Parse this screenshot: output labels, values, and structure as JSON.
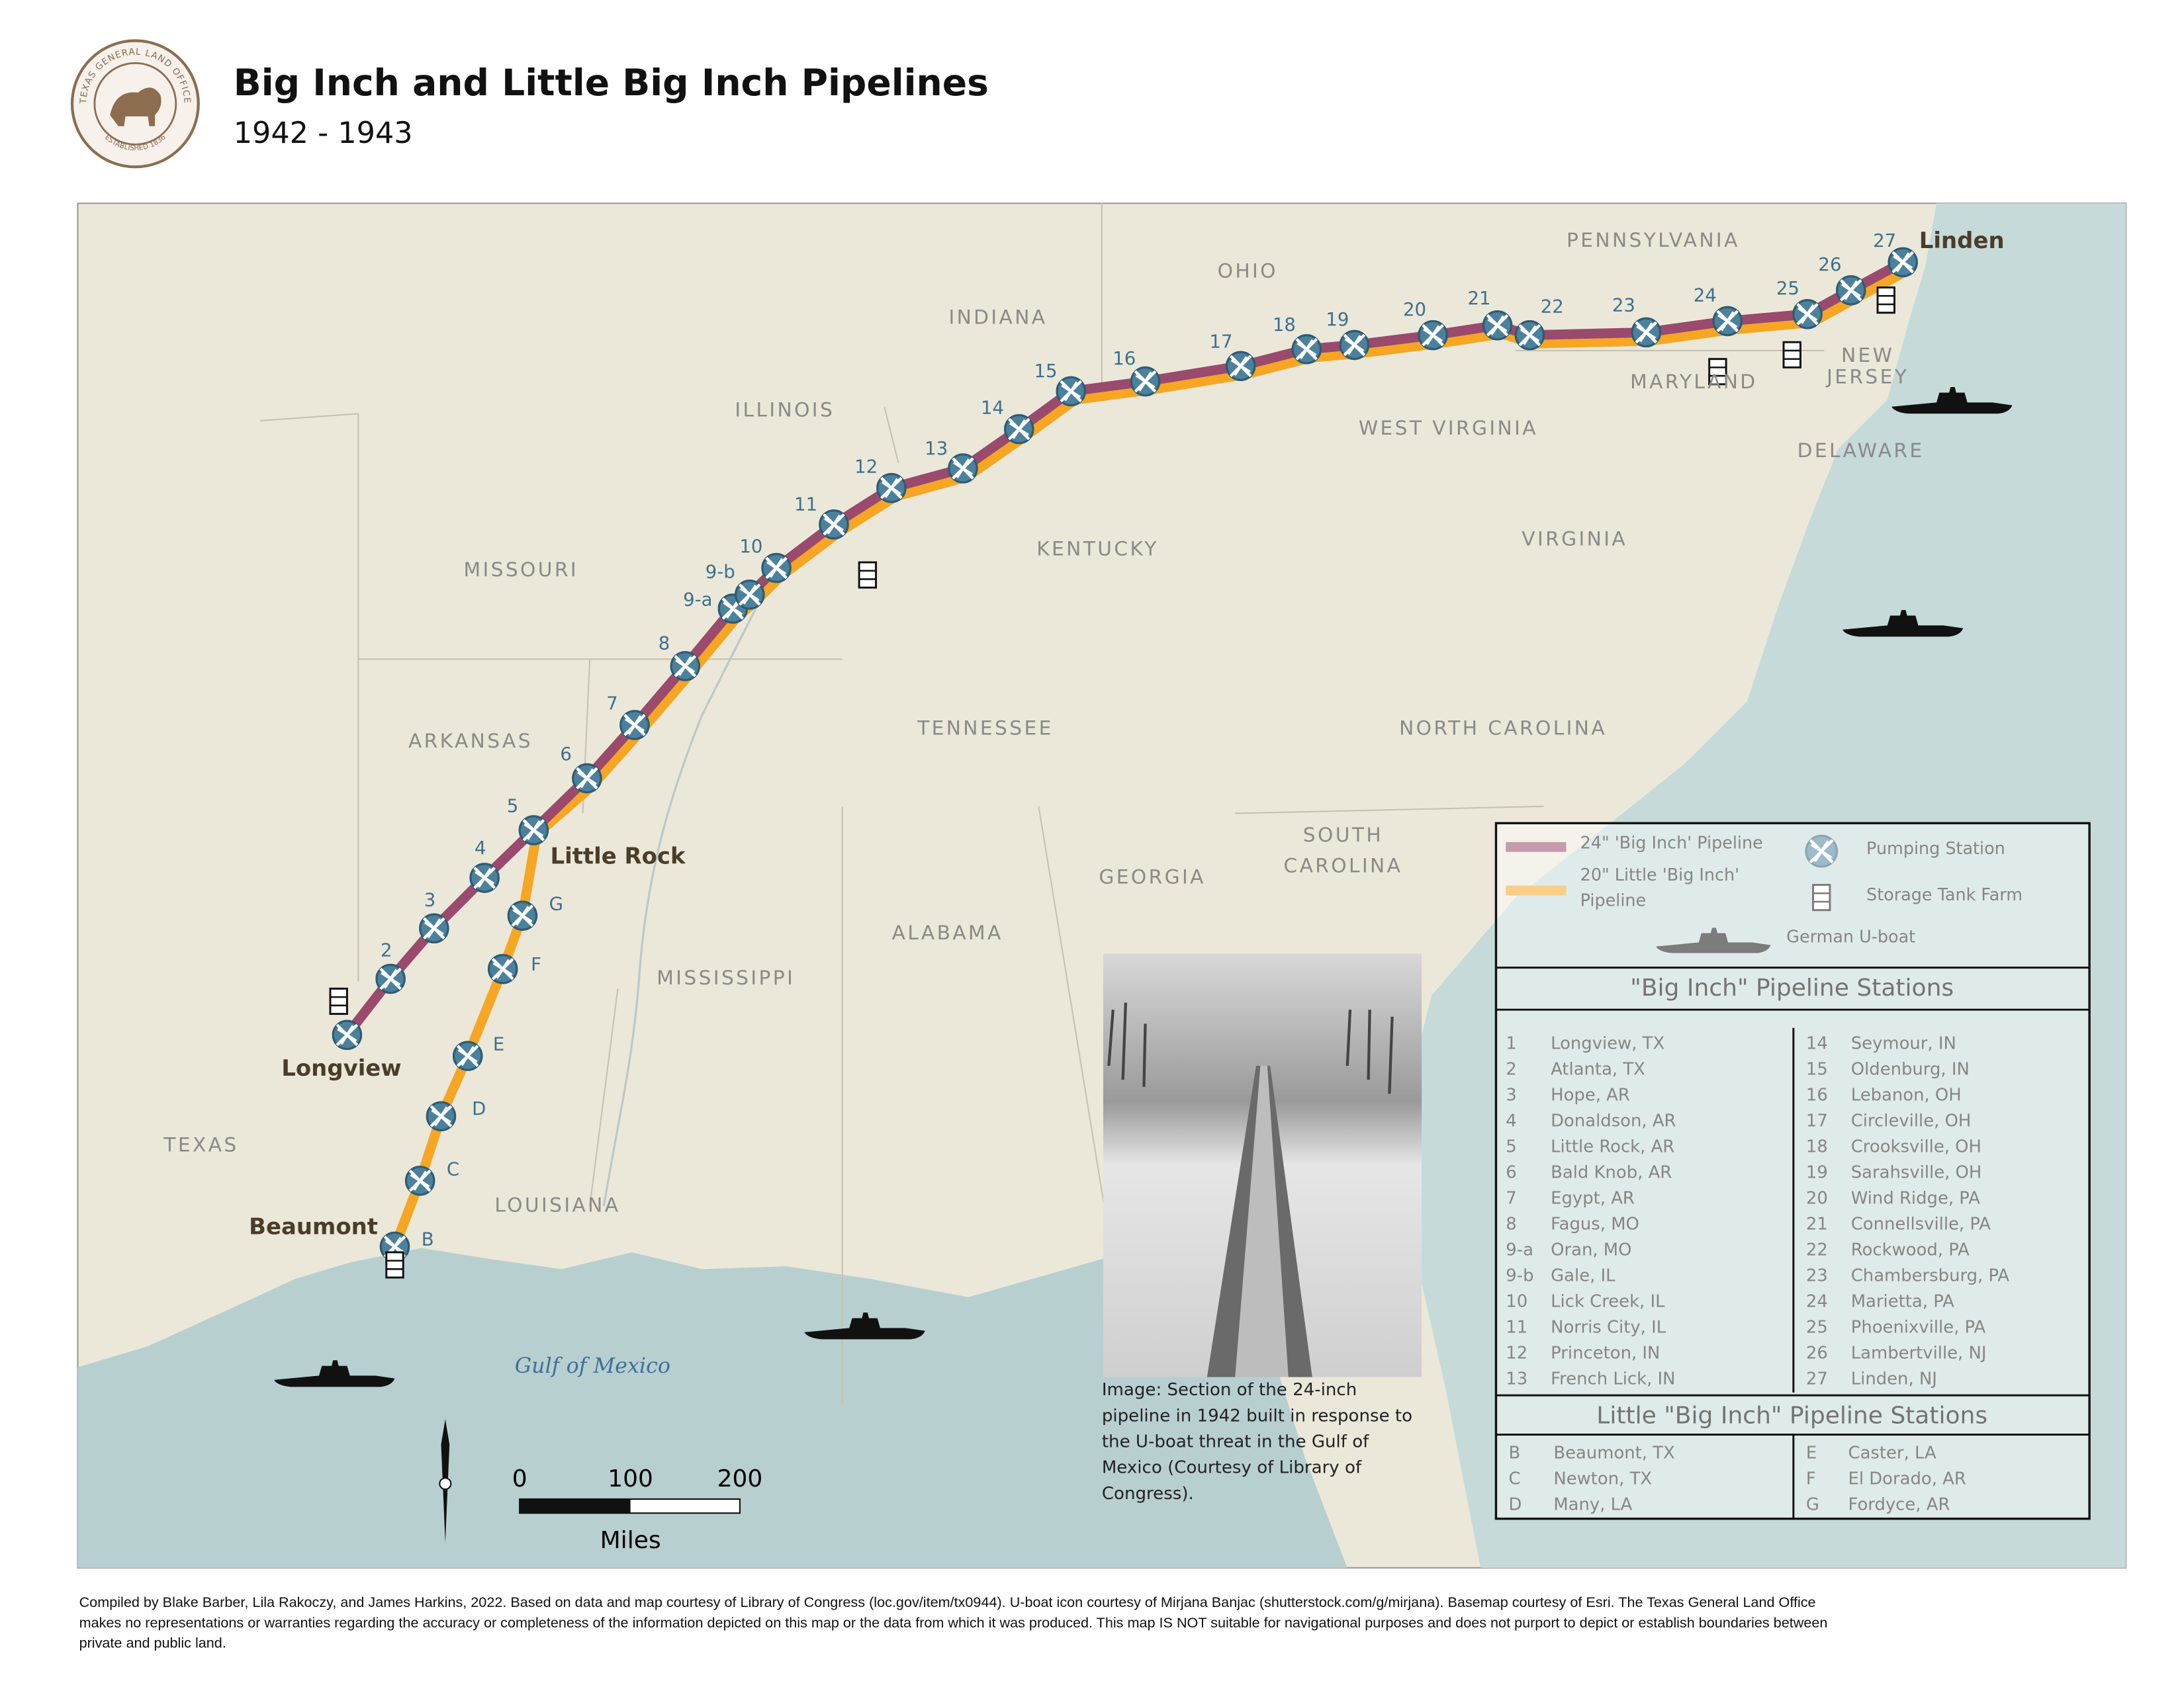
{
  "header": {
    "title": "Big Inch and Little Big Inch Pipelines",
    "subtitle": "1942 - 1943"
  },
  "seal": {
    "top": "TEXAS GENERAL LAND OFFICE",
    "bottom": "ESTABLISHED 1836"
  },
  "map": {
    "states": [
      [
        "PENNSYLVANIA"
      ],
      [
        "OHIO"
      ],
      [
        "INDIANA"
      ],
      [
        "ILLINOIS"
      ],
      [
        "NEW",
        "JERSEY"
      ],
      [
        "MARYLAND"
      ],
      [
        "DELAWARE"
      ],
      [
        "WEST VIRGINIA"
      ],
      [
        "VIRGINIA"
      ],
      [
        "KENTUCKY"
      ],
      [
        "MISSOURI"
      ],
      [
        "TENNESSEE"
      ],
      [
        "NORTH CAROLINA"
      ],
      [
        "ARKANSAS"
      ],
      [
        "SOUTH",
        "CAROLINA"
      ],
      [
        "GEORGIA"
      ],
      [
        "ALABAMA"
      ],
      [
        "MISSISSIPPI"
      ],
      [
        "TEXAS"
      ],
      [
        "LOUISIANA"
      ]
    ],
    "cities": [
      "Linden",
      "Little Rock",
      "Longview",
      "Beaumont"
    ],
    "water": "Gulf of Mexico"
  },
  "legend": {
    "big_inch": "24\" 'Big Inch' Pipeline",
    "little_big_inch": [
      "20\" Little 'Big Inch'",
      "Pipeline"
    ],
    "pumping_station": "Pumping Station",
    "storage_tank_farm": "Storage Tank Farm",
    "u_boat": "German U-boat"
  },
  "big_inch_stations": {
    "title": "\"Big Inch\" Pipeline Stations",
    "stations": [
      {
        "number": "1",
        "name": "Longview, TX"
      },
      {
        "number": "2",
        "name": "Atlanta, TX"
      },
      {
        "number": "3",
        "name": "Hope, AR"
      },
      {
        "number": "4",
        "name": "Donaldson, AR"
      },
      {
        "number": "5",
        "name": "Little Rock, AR"
      },
      {
        "number": "6",
        "name": "Bald Knob, AR"
      },
      {
        "number": "7",
        "name": "Egypt, AR"
      },
      {
        "number": "8",
        "name": "Fagus, MO"
      },
      {
        "number": "9-a",
        "name": "Oran, MO"
      },
      {
        "number": "9-b",
        "name": "Gale, IL"
      },
      {
        "number": "10",
        "name": "Lick Creek, IL"
      },
      {
        "number": "11",
        "name": "Norris City, IL"
      },
      {
        "number": "12",
        "name": "Princeton, IN"
      },
      {
        "number": "13",
        "name": "French Lick, IN"
      },
      {
        "number": "14",
        "name": "Seymour, IN"
      },
      {
        "number": "15",
        "name": "Oldenburg, IN"
      },
      {
        "number": "16",
        "name": "Lebanon, OH"
      },
      {
        "number": "17",
        "name": "Circleville, OH"
      },
      {
        "number": "18",
        "name": "Crooksville, OH"
      },
      {
        "number": "19",
        "name": "Sarahsville, OH"
      },
      {
        "number": "20",
        "name": "Wind Ridge, PA"
      },
      {
        "number": "21",
        "name": "Connellsville, PA"
      },
      {
        "number": "22",
        "name": "Rockwood, PA"
      },
      {
        "number": "23",
        "name": "Chambersburg, PA"
      },
      {
        "number": "24",
        "name": "Marietta, PA"
      },
      {
        "number": "25",
        "name": "Phoenixville, PA"
      },
      {
        "number": "26",
        "name": "Lambertville, NJ"
      },
      {
        "number": "27",
        "name": "Linden, NJ"
      }
    ]
  },
  "little_big_inch_stations": {
    "title": "Little \"Big Inch\" Pipeline Stations",
    "stations": [
      {
        "number": "B",
        "name": "Beaumont, TX"
      },
      {
        "number": "C",
        "name": "Newton, TX"
      },
      {
        "number": "D",
        "name": "Many, LA"
      },
      {
        "number": "E",
        "name": "Caster, LA"
      },
      {
        "number": "F",
        "name": "El Dorado, AR"
      },
      {
        "number": "G",
        "name": "Fordyce, AR"
      }
    ]
  },
  "photo_caption": [
    "Image: Section of the 24-inch",
    "pipeline in 1942 built in response to",
    "the U-boat threat in the Gulf of",
    "Mexico (Courtesy of Library of",
    "Congress)."
  ],
  "scale_bar": {
    "ticks": [
      0,
      100,
      200
    ],
    "unit": "Miles"
  },
  "footer": [
    "Compiled by Blake Barber, Lila Rakoczy, and James Harkins, 2022. Based on data and map courtesy of Library of Congress (loc.gov/item/tx0944). U-boat icon courtesy of Mirjana Banjac (shutterstock.com/g/mirjana). Basemap courtesy of Esri. The Texas General Land Office",
    "makes no representations or warranties regarding the accuracy or completeness of the information depicted on this map or the data from which it was produced. This map IS NOT suitable for navigational purposes and does not purport to depict or establish boundaries between",
    "private and public land."
  ]
}
